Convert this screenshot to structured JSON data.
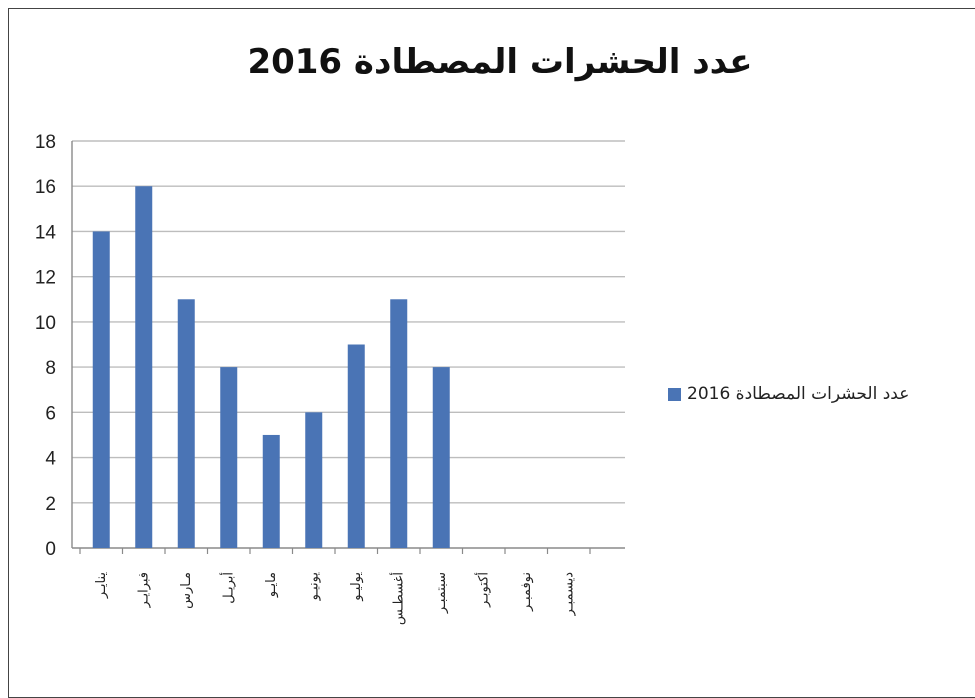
{
  "chart_data": {
    "type": "bar",
    "title": "عدد الحشرات المصطادة 2016",
    "categories": [
      "ينايـر",
      "فبرايـر",
      "مـارس",
      "أبريـل",
      "مايـو",
      "يونيـو",
      "يوليـو",
      "أغسطـس",
      "سبتمبـر",
      "أكتوبـر",
      "نوفمبـر",
      "ديسمبـر"
    ],
    "series": [
      {
        "name": "عدد الحشرات المصطادة 2016",
        "values": [
          14,
          16,
          11,
          8,
          5,
          6,
          9,
          11,
          8,
          null,
          null,
          null
        ]
      }
    ],
    "y_ticks": [
      "0",
      "2",
      "4",
      "6",
      "8",
      "10",
      "12",
      "14",
      "16",
      "18"
    ],
    "ylim": [
      0,
      18
    ],
    "grid": true,
    "legend_position": "right",
    "bar_color": "#4a74b5"
  }
}
